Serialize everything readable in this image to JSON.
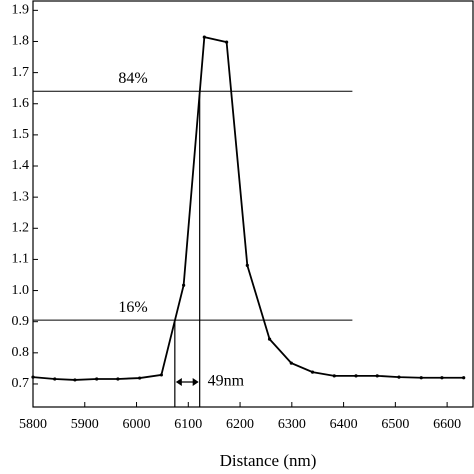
{
  "chart_data": {
    "type": "line",
    "x_label": "Distance (nm)",
    "x": [
      5800,
      5842,
      5881,
      5923,
      5964,
      6006,
      6048,
      6091,
      6131,
      6174,
      6214,
      6257,
      6299,
      6340,
      6382,
      6424,
      6465,
      6507,
      6550,
      6590,
      6632
    ],
    "series": [
      {
        "color": "#000000",
        "values": [
          0.722,
          0.716,
          0.713,
          0.716,
          0.716,
          0.719,
          0.729,
          1.017,
          1.814,
          1.798,
          1.081,
          0.844,
          0.767,
          0.738,
          0.726,
          0.726,
          0.726,
          0.722,
          0.72,
          0.72,
          0.72
        ]
      }
    ],
    "xlim": [
      5800,
      6650
    ],
    "ylim": [
      0.626,
      1.93
    ],
    "xticks": [
      5800,
      5900,
      6000,
      6100,
      6200,
      6300,
      6400,
      6500,
      6600
    ],
    "yticks": [
      0.7,
      0.8,
      0.9,
      {
        "value": 1,
        "label": "1.0"
      },
      1.1,
      1.2,
      1.3,
      1.4,
      1.5,
      1.6,
      1.7,
      1.8,
      1.9
    ],
    "reference_lines": [
      {
        "label": "84%",
        "value": 1.64,
        "x_end": 6417
      },
      {
        "label": "16%",
        "value": 0.905,
        "x_end": 6417
      }
    ],
    "width_markers": {
      "x": [
        6074,
        6122
      ],
      "label": "49nm"
    }
  }
}
